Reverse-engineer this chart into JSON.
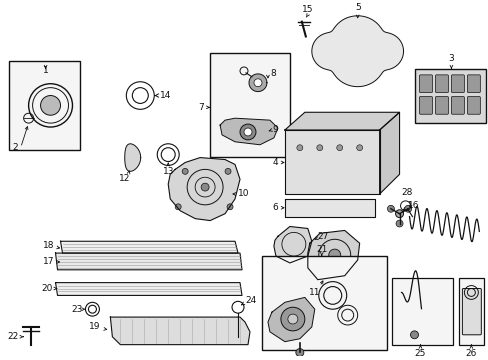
{
  "background": "#ffffff",
  "fig_width": 4.89,
  "fig_height": 3.6,
  "dpi": 100,
  "lc": "#111111",
  "lw": 0.8,
  "label_fs": 6.5
}
